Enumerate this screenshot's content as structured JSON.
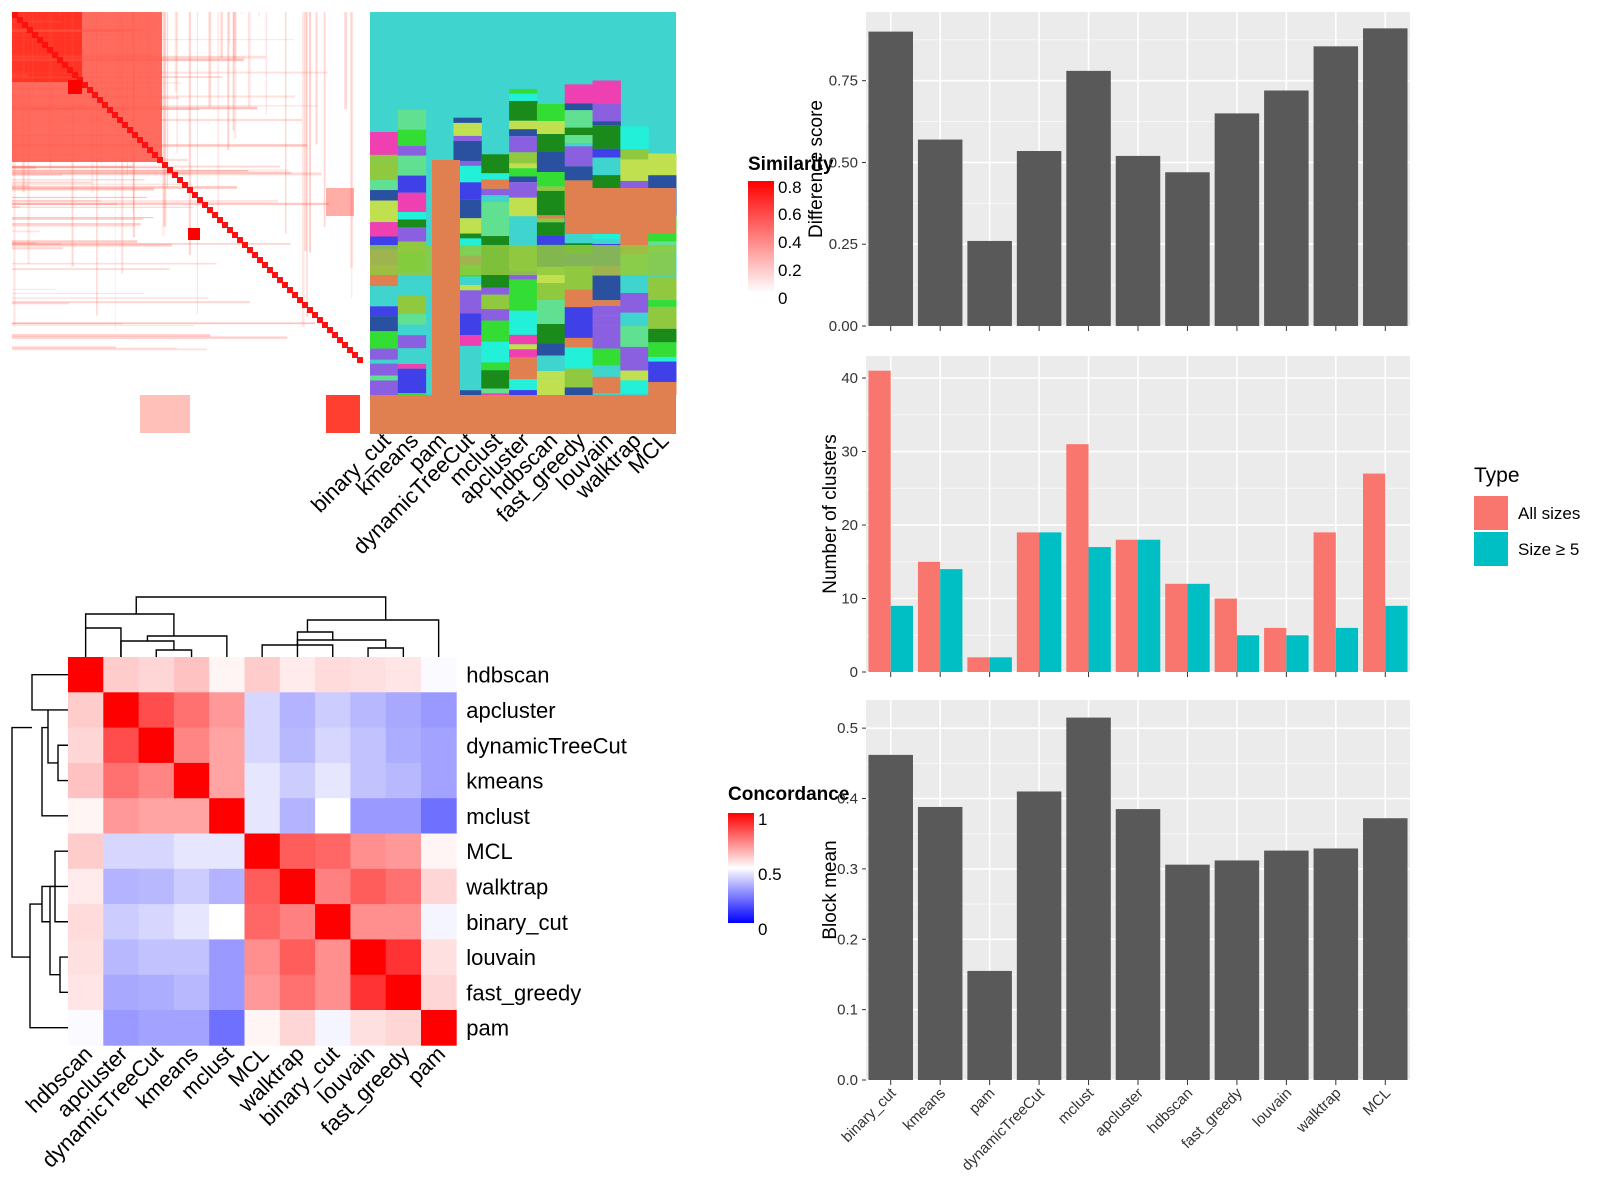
{
  "methods": [
    "binary_cut",
    "kmeans",
    "pam",
    "dynamicTreeCut",
    "mclust",
    "apcluster",
    "hdbscan",
    "fast_greedy",
    "louvain",
    "walktrap",
    "MCL"
  ],
  "similarity_legend": {
    "title": "Similarity",
    "ticks": [
      "0.8",
      "0.6",
      "0.4",
      "0.2",
      "0"
    ]
  },
  "concordance_legend": {
    "title": "Concordance",
    "ticks": [
      "1",
      "0.5",
      "0"
    ]
  },
  "type_legend": {
    "title": "Type",
    "items": [
      {
        "label": "All sizes",
        "color": "#F8766D"
      },
      {
        "label": "Size ≥ 5",
        "color": "#00BFC4"
      }
    ]
  },
  "chart_data": [
    {
      "type": "heatmap",
      "name": "concordance",
      "rows": [
        "hdbscan",
        "apcluster",
        "dynamicTreeCut",
        "kmeans",
        "mclust",
        "MCL",
        "walktrap",
        "binary_cut",
        "louvain",
        "fast_greedy",
        "pam"
      ],
      "cols": [
        "hdbscan",
        "apcluster",
        "dynamicTreeCut",
        "kmeans",
        "mclust",
        "MCL",
        "walktrap",
        "binary_cut",
        "louvain",
        "fast_greedy",
        "pam"
      ],
      "values": [
        [
          1.0,
          0.6,
          0.58,
          0.62,
          0.52,
          0.6,
          0.54,
          0.57,
          0.56,
          0.55,
          0.49
        ],
        [
          0.6,
          1.0,
          0.85,
          0.78,
          0.7,
          0.42,
          0.35,
          0.4,
          0.36,
          0.33,
          0.3
        ],
        [
          0.58,
          0.85,
          1.0,
          0.74,
          0.68,
          0.42,
          0.36,
          0.42,
          0.38,
          0.34,
          0.32
        ],
        [
          0.62,
          0.78,
          0.74,
          1.0,
          0.68,
          0.45,
          0.4,
          0.45,
          0.38,
          0.36,
          0.32
        ],
        [
          0.52,
          0.7,
          0.68,
          0.68,
          1.0,
          0.45,
          0.35,
          0.5,
          0.3,
          0.3,
          0.22
        ],
        [
          0.6,
          0.42,
          0.42,
          0.45,
          0.45,
          1.0,
          0.82,
          0.8,
          0.72,
          0.7,
          0.52
        ],
        [
          0.54,
          0.35,
          0.36,
          0.4,
          0.35,
          0.82,
          1.0,
          0.75,
          0.82,
          0.78,
          0.58
        ],
        [
          0.57,
          0.4,
          0.42,
          0.45,
          0.5,
          0.8,
          0.75,
          1.0,
          0.72,
          0.72,
          0.48
        ],
        [
          0.56,
          0.36,
          0.38,
          0.38,
          0.3,
          0.72,
          0.82,
          0.72,
          1.0,
          0.9,
          0.56
        ],
        [
          0.55,
          0.33,
          0.34,
          0.36,
          0.3,
          0.7,
          0.78,
          0.72,
          0.9,
          1.0,
          0.58
        ],
        [
          0.49,
          0.3,
          0.32,
          0.32,
          0.22,
          0.52,
          0.58,
          0.48,
          0.56,
          0.58,
          1.0
        ]
      ],
      "legend_title": "Concordance"
    },
    {
      "type": "bar",
      "name": "difference",
      "categories": [
        "binary_cut",
        "kmeans",
        "pam",
        "dynamicTreeCut",
        "mclust",
        "apcluster",
        "hdbscan",
        "fast_greedy",
        "louvain",
        "walktrap",
        "MCL"
      ],
      "values": [
        0.9,
        0.57,
        0.26,
        0.535,
        0.78,
        0.52,
        0.47,
        0.65,
        0.72,
        0.855,
        0.91
      ],
      "ylabel": "Difference score",
      "ylim": [
        0,
        0.96
      ],
      "yticks": [
        "0.00",
        "0.25",
        "0.50",
        "0.75"
      ]
    },
    {
      "type": "bar",
      "name": "clusters",
      "categories": [
        "binary_cut",
        "kmeans",
        "pam",
        "dynamicTreeCut",
        "mclust",
        "apcluster",
        "hdbscan",
        "fast_greedy",
        "louvain",
        "walktrap",
        "MCL"
      ],
      "series": [
        {
          "name": "All sizes",
          "values": [
            41,
            15,
            2,
            19,
            31,
            18,
            12,
            10,
            6,
            19,
            27
          ]
        },
        {
          "name": "Size ≥ 5",
          "values": [
            9,
            14,
            2,
            19,
            17,
            18,
            12,
            5,
            5,
            6,
            9
          ]
        }
      ],
      "ylabel": "Number of clusters",
      "ylim": [
        0,
        43
      ],
      "yticks": [
        "0",
        "10",
        "20",
        "30",
        "40"
      ],
      "legend": "right"
    },
    {
      "type": "bar",
      "name": "blockmean",
      "categories": [
        "binary_cut",
        "kmeans",
        "pam",
        "dynamicTreeCut",
        "mclust",
        "apcluster",
        "hdbscan",
        "fast_greedy",
        "louvain",
        "walktrap",
        "MCL"
      ],
      "values": [
        0.462,
        0.388,
        0.155,
        0.41,
        0.515,
        0.385,
        0.306,
        0.312,
        0.326,
        0.329,
        0.372
      ],
      "ylabel": "Block mean",
      "ylim": [
        0,
        0.54
      ],
      "yticks": [
        "0.0",
        "0.1",
        "0.2",
        "0.3",
        "0.4",
        "0.5"
      ]
    }
  ]
}
